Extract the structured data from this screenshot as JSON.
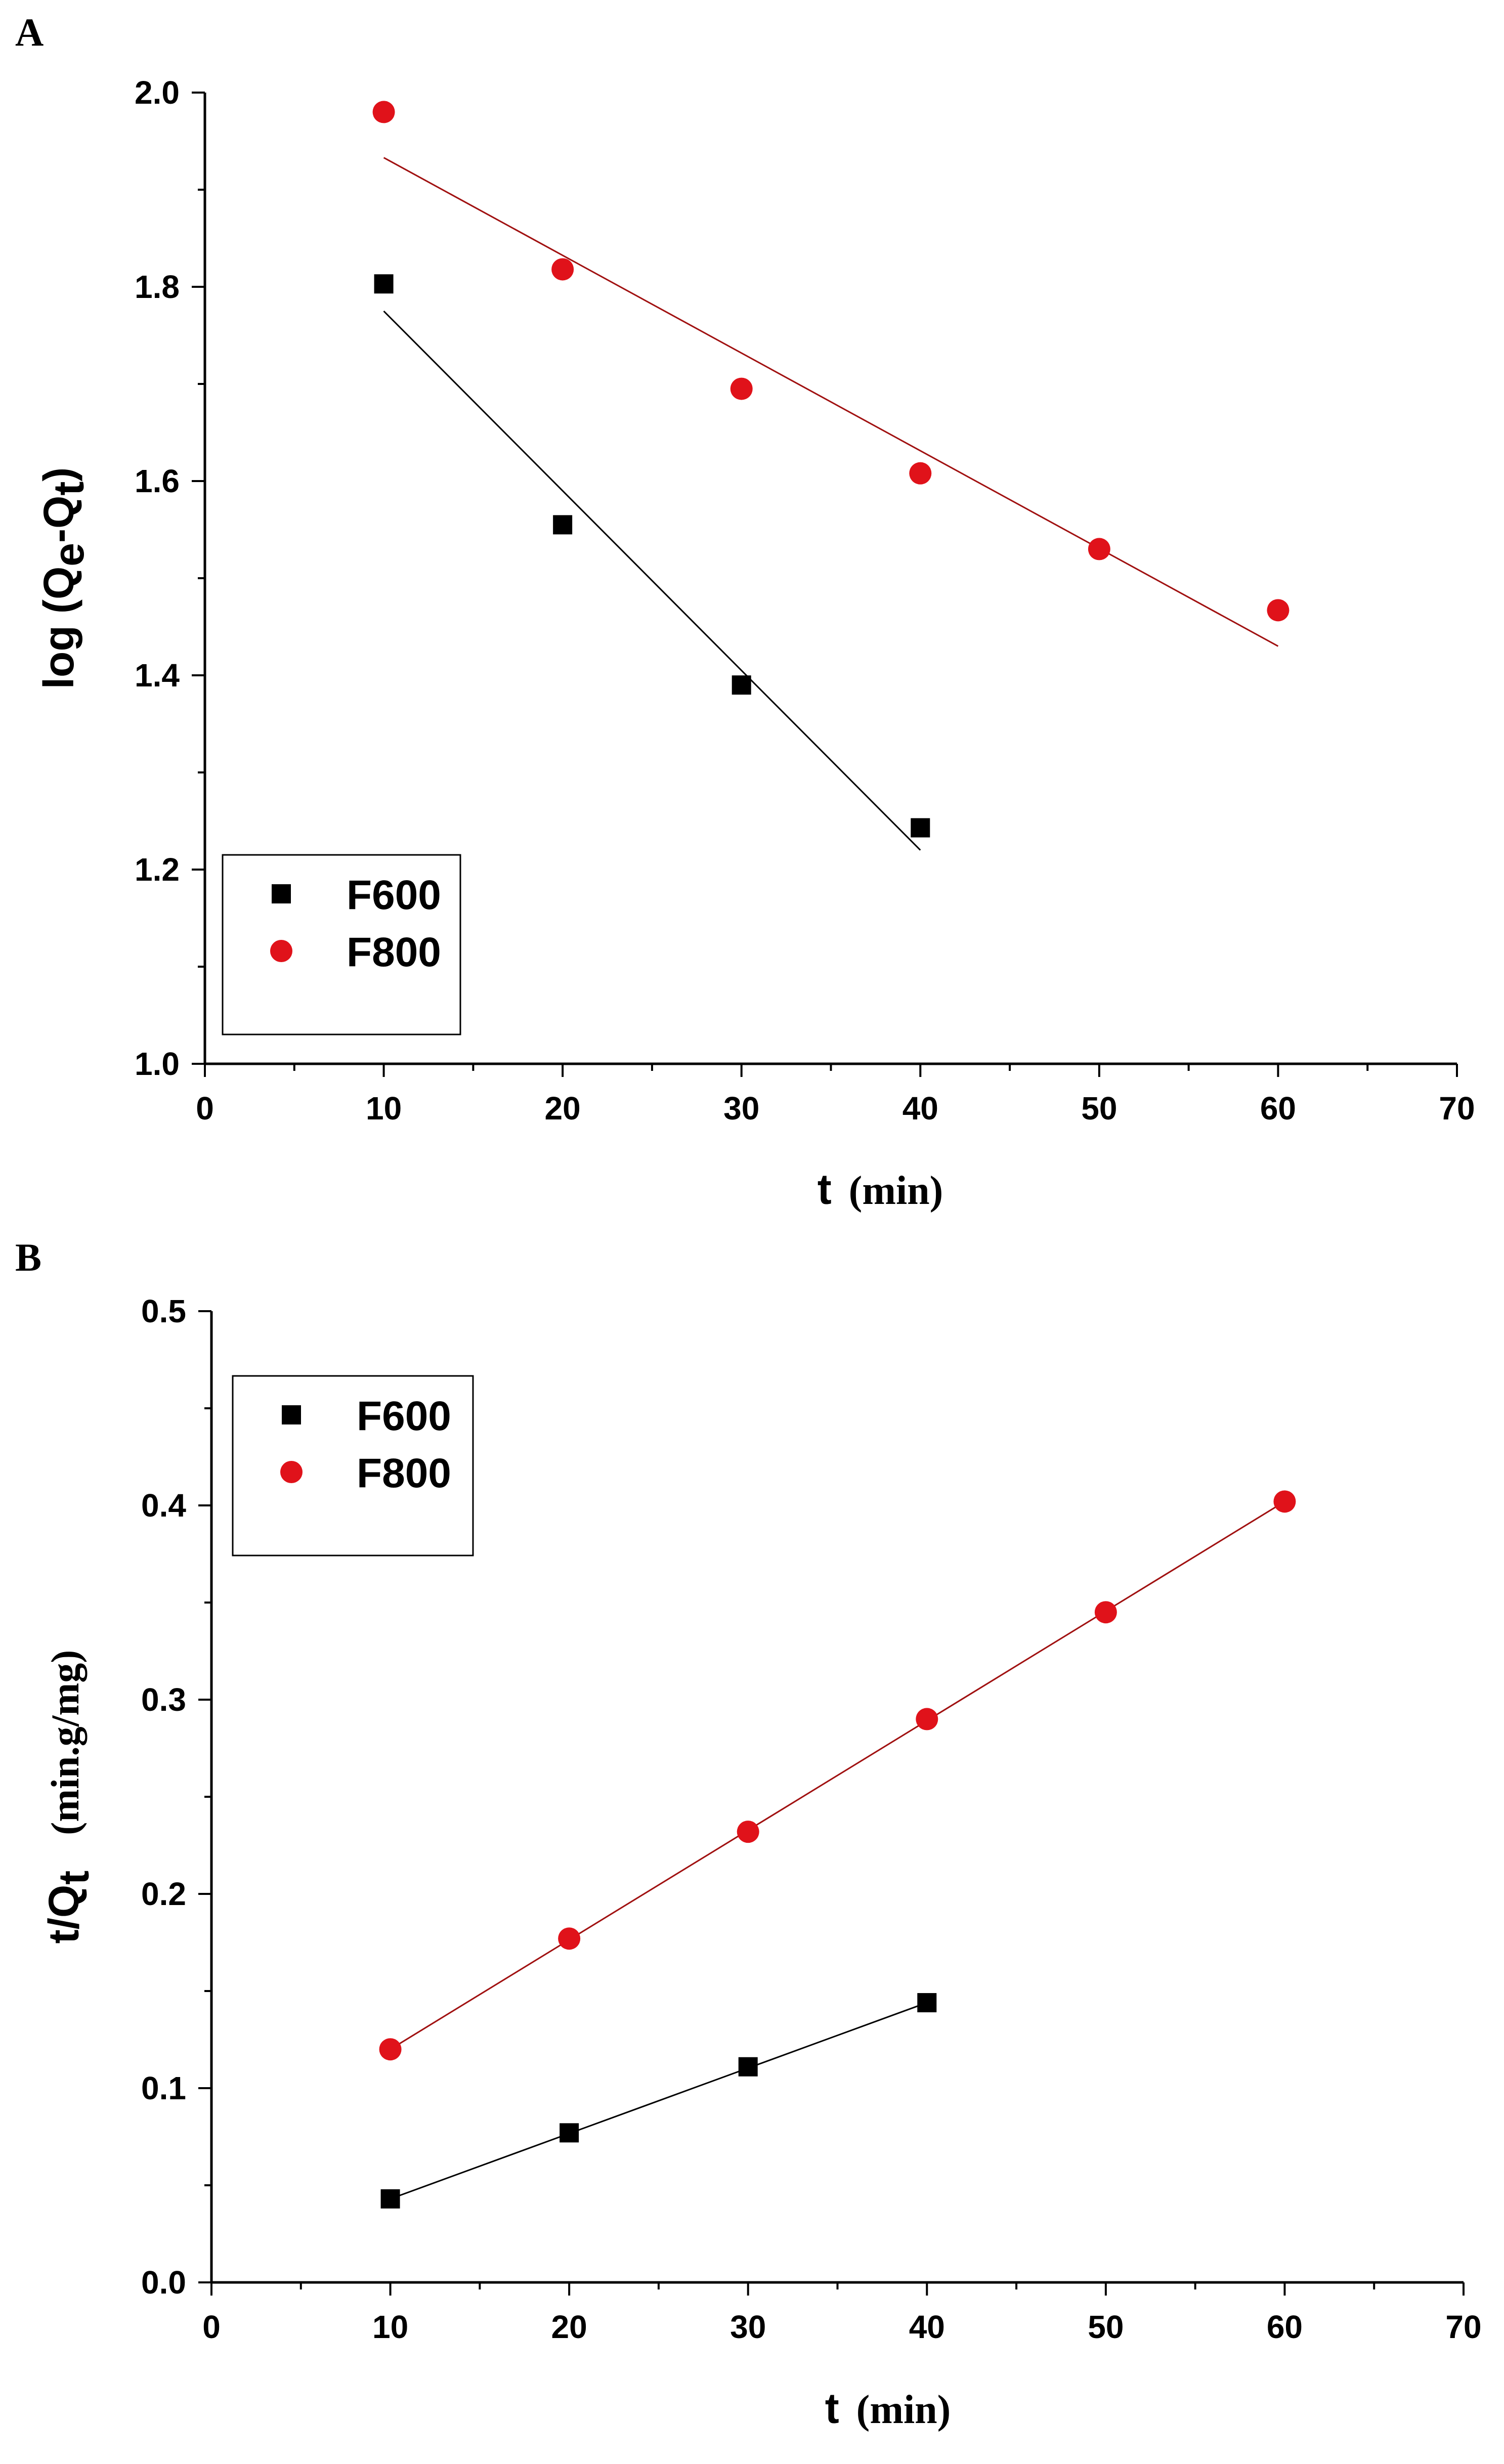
{
  "colors": {
    "F600": "#000000",
    "F800": "#e0121a",
    "fit_F600": "#000000",
    "fit_F800": "#a01010"
  },
  "chart_data": [
    {
      "panel": "A",
      "type": "scatter",
      "xlabel": "t",
      "xlabel_unit": "(min)",
      "ylabel": "log (Q",
      "ylabel_sub1": "e",
      "ylabel_mid": "-Q",
      "ylabel_sub2": "t",
      "ylabel_end": ")",
      "xlim": [
        0,
        70
      ],
      "ylim": [
        1.0,
        2.0
      ],
      "xticks": [
        0,
        10,
        20,
        30,
        40,
        50,
        60,
        70
      ],
      "xtick_labels": [
        "0",
        "10",
        "20",
        "30",
        "40",
        "50",
        "60",
        "70"
      ],
      "yticks": [
        1.0,
        1.2,
        1.4,
        1.6,
        1.8,
        2.0
      ],
      "ytick_labels": [
        "1.0",
        "1.2",
        "1.4",
        "1.6",
        "1.8",
        "2.0"
      ],
      "legend_position": "bottom-left",
      "series": [
        {
          "name": "F600",
          "marker": "square",
          "x": [
            10,
            20,
            30,
            40
          ],
          "y": [
            1.803,
            1.555,
            1.39,
            1.243
          ],
          "fit": [
            [
              10,
              1.775
            ],
            [
              40,
              1.22
            ]
          ]
        },
        {
          "name": "F800",
          "marker": "circle",
          "x": [
            10,
            20,
            30,
            40,
            50,
            60
          ],
          "y": [
            1.98,
            1.818,
            1.695,
            1.608,
            1.53,
            1.467
          ],
          "fit": [
            [
              10,
              1.933
            ],
            [
              60,
              1.43
            ]
          ]
        }
      ]
    },
    {
      "panel": "B",
      "type": "scatter",
      "xlabel": "t",
      "xlabel_unit": "(min)",
      "ylabel": "t/Q",
      "ylabel_sub": "t",
      "ylabel_unit": "(min.g/mg)",
      "xlim": [
        0,
        70
      ],
      "ylim": [
        0.0,
        0.5
      ],
      "xticks": [
        0,
        10,
        20,
        30,
        40,
        50,
        60,
        70
      ],
      "xtick_labels": [
        "0",
        "10",
        "20",
        "30",
        "40",
        "50",
        "60",
        "70"
      ],
      "yticks": [
        0.0,
        0.1,
        0.2,
        0.3,
        0.4,
        0.5
      ],
      "ytick_labels": [
        "0.0",
        "0.1",
        "0.2",
        "0.3",
        "0.4",
        "0.5"
      ],
      "legend_position": "top-left",
      "series": [
        {
          "name": "F600",
          "marker": "square",
          "x": [
            10,
            20,
            30,
            40
          ],
          "y": [
            0.043,
            0.077,
            0.111,
            0.144
          ],
          "fit": [
            [
              10,
              0.043
            ],
            [
              40,
              0.144
            ]
          ]
        },
        {
          "name": "F800",
          "marker": "circle",
          "x": [
            10,
            20,
            30,
            40,
            50,
            60
          ],
          "y": [
            0.12,
            0.177,
            0.232,
            0.29,
            0.345,
            0.402
          ],
          "fit": [
            [
              10,
              0.12
            ],
            [
              60,
              0.402
            ]
          ]
        }
      ]
    }
  ]
}
